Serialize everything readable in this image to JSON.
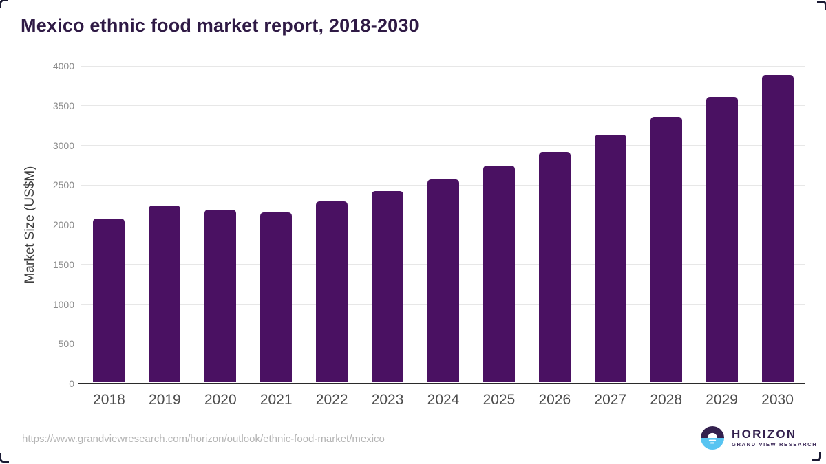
{
  "header": {
    "title": "Mexico ethnic food market report, 2018-2030"
  },
  "chart_data": {
    "type": "bar",
    "title": "Mexico ethnic food market report, 2018-2030",
    "categories": [
      "2018",
      "2019",
      "2020",
      "2021",
      "2022",
      "2023",
      "2024",
      "2025",
      "2026",
      "2027",
      "2028",
      "2029",
      "2030"
    ],
    "values": [
      2060,
      2225,
      2175,
      2140,
      2275,
      2405,
      2555,
      2725,
      2900,
      3115,
      3340,
      3590,
      3870
    ],
    "xlabel": "",
    "ylabel": "Market Size (US$M)",
    "ylim": [
      0,
      4000
    ],
    "yticks": [
      0,
      500,
      1000,
      1500,
      2000,
      2500,
      3000,
      3500,
      4000
    ],
    "grid": "horizontal",
    "legend": "none",
    "bar_color": "#4a1162"
  },
  "footer": {
    "source_url": "https://www.grandviewresearch.com/horizon/outlook/ethnic-food-market/mexico",
    "logo": {
      "brand": "HORIZON",
      "tagline": "GRAND VIEW RESEARCH"
    }
  },
  "colors": {
    "bar": "#4a1162",
    "title_text": "#2f1a45",
    "gridline": "#e7e7e7",
    "axis_line": "#2b2b2b",
    "logo_purple": "#33204e",
    "logo_blue": "#58c4f1"
  }
}
